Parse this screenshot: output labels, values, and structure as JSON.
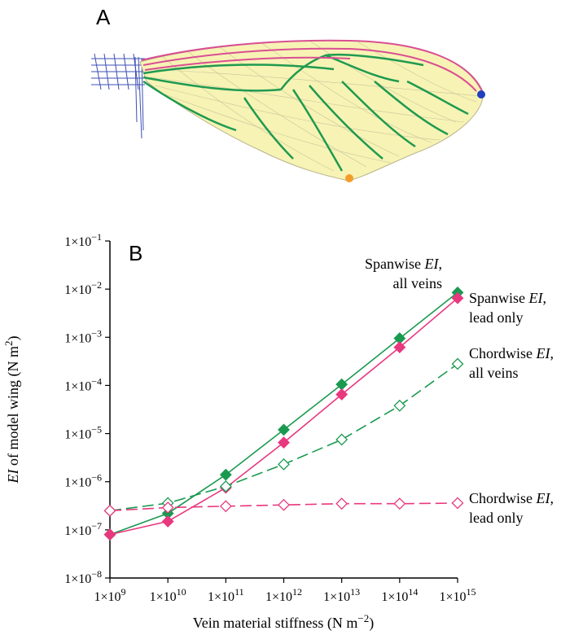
{
  "panels": {
    "a_label": "A",
    "b_label": "B"
  },
  "wing": {
    "membrane_color": "#f7f3b5",
    "vein_color": "#1f9a4f",
    "leading_edge_color": "#d94f93",
    "base_mesh_color": "#3d4fb5",
    "tip_marker_color": "#1f3fbf",
    "trailing_marker_color": "#f29c2b"
  },
  "chart_data": {
    "type": "line",
    "title": "",
    "xlabel": "Vein material stiffness (N m−2)",
    "ylabel": "EI of model wing (N m2)",
    "xscale": "log",
    "yscale": "log",
    "x": [
      1000000000.0,
      10000000000.0,
      100000000000.0,
      1000000000000.0,
      10000000000000.0,
      100000000000000.0,
      1000000000000000.0
    ],
    "x_tick_labels": [
      "1×10^9",
      "1×10^10",
      "1×10^11",
      "1×10^12",
      "1×10^13",
      "1×10^14",
      "1×10^15"
    ],
    "y_tick_labels": [
      "1×10^−8",
      "1×10^−7",
      "1×10^−6",
      "1×10^−5",
      "1×10^−4",
      "1×10^−3",
      "1×10^−2",
      "1×10^−1"
    ],
    "xlim": [
      1000000000.0,
      1000000000000000.0
    ],
    "ylim": [
      1e-08,
      0.1
    ],
    "grid": false,
    "series": [
      {
        "label_lines": [
          "Spanwise EI,",
          "all veins"
        ],
        "color": "#1a9a50",
        "marker": "filled-diamond",
        "dash": "solid",
        "values": [
          8e-08,
          2.2e-07,
          1.4e-06,
          1.2e-05,
          0.000105,
          0.00095,
          0.0085
        ]
      },
      {
        "label_lines": [
          "Spanwise EI,",
          "lead only"
        ],
        "color": "#e8387e",
        "marker": "filled-diamond",
        "dash": "solid",
        "values": [
          8e-08,
          1.5e-07,
          7.5e-07,
          6.5e-06,
          6.5e-05,
          0.00062,
          0.0065
        ]
      },
      {
        "label_lines": [
          "Chordwise EI,",
          "all veins"
        ],
        "color": "#1a9a50",
        "marker": "open-diamond",
        "dash": "dashed",
        "values": [
          2.5e-07,
          3.6e-07,
          8e-07,
          2.3e-06,
          7.5e-06,
          3.8e-05,
          0.00028
        ]
      },
      {
        "label_lines": [
          "Chordwise EI,",
          "lead only"
        ],
        "color": "#e8387e",
        "marker": "open-diamond",
        "dash": "dashed",
        "values": [
          2.5e-07,
          2.9e-07,
          3.1e-07,
          3.3e-07,
          3.5e-07,
          3.5e-07,
          3.6e-07
        ]
      }
    ]
  }
}
